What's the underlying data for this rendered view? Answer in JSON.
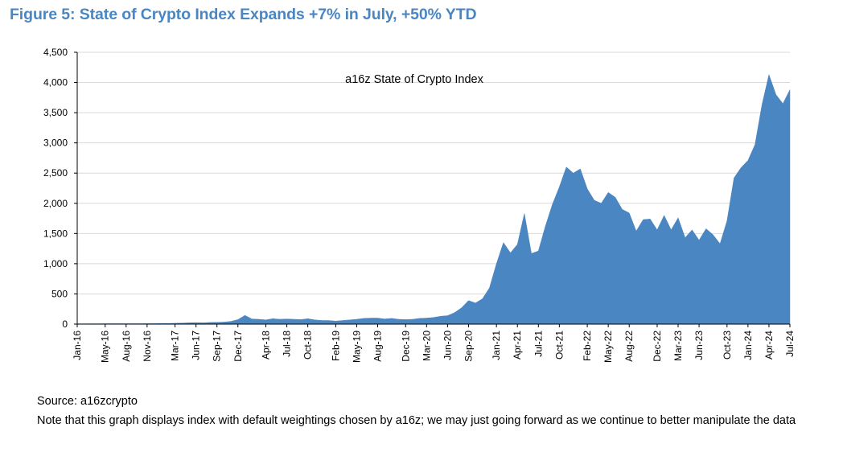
{
  "figure_title": "Figure 5: State of Crypto Index Expands +7% in July, +50% YTD",
  "source_text": "Source: a16zcrypto",
  "note_text": "Note that this graph displays index with default weightings chosen by a16z; we may just going forward as we continue to better manipulate the data",
  "colors": {
    "title": "#4a86c1",
    "area_fill": "#4a86c1",
    "grid": "#d9d9d9",
    "axis": "#000000"
  },
  "chart_data": {
    "type": "area",
    "title": "",
    "legend_label": "a16z State of Crypto Index",
    "legend_placement": "top-center",
    "xlabel": "",
    "ylabel": "",
    "ylim": [
      0,
      4500
    ],
    "yticks": [
      0,
      500,
      1000,
      1500,
      2000,
      2500,
      3000,
      3500,
      4000,
      4500
    ],
    "ytick_labels": [
      "0",
      "500",
      "1,000",
      "1,500",
      "2,000",
      "2,500",
      "3,000",
      "3,500",
      "4,000",
      "4,500"
    ],
    "grid": "horizontal",
    "xtick_labels": [
      "Jan-16",
      "May-16",
      "Aug-16",
      "Nov-16",
      "Mar-17",
      "Jun-17",
      "Sep-17",
      "Dec-17",
      "Apr-18",
      "Jul-18",
      "Oct-18",
      "Feb-19",
      "May-19",
      "Aug-19",
      "Dec-19",
      "Mar-20",
      "Jun-20",
      "Sep-20",
      "Jan-21",
      "Apr-21",
      "Jul-21",
      "Oct-21",
      "Feb-22",
      "May-22",
      "Aug-22",
      "Dec-22",
      "Mar-23",
      "Jun-23",
      "Oct-23",
      "Jan-24",
      "Apr-24",
      "Jul-24"
    ],
    "series": [
      {
        "name": "a16z State of Crypto Index",
        "points": [
          [
            "Jan-16",
            5
          ],
          [
            "Feb-16",
            5
          ],
          [
            "Mar-16",
            6
          ],
          [
            "Apr-16",
            6
          ],
          [
            "May-16",
            7
          ],
          [
            "Jun-16",
            7
          ],
          [
            "Jul-16",
            7
          ],
          [
            "Aug-16",
            7
          ],
          [
            "Sep-16",
            7
          ],
          [
            "Oct-16",
            7
          ],
          [
            "Nov-16",
            8
          ],
          [
            "Dec-16",
            8
          ],
          [
            "Jan-17",
            10
          ],
          [
            "Feb-17",
            11
          ],
          [
            "Mar-17",
            14
          ],
          [
            "Apr-17",
            17
          ],
          [
            "May-17",
            22
          ],
          [
            "Jun-17",
            25
          ],
          [
            "Jul-17",
            22
          ],
          [
            "Aug-17",
            28
          ],
          [
            "Sep-17",
            30
          ],
          [
            "Oct-17",
            34
          ],
          [
            "Nov-17",
            45
          ],
          [
            "Dec-17",
            75
          ],
          [
            "Jan-18",
            145
          ],
          [
            "Feb-18",
            85
          ],
          [
            "Mar-18",
            80
          ],
          [
            "Apr-18",
            70
          ],
          [
            "May-18",
            90
          ],
          [
            "Jun-18",
            80
          ],
          [
            "Jul-18",
            85
          ],
          [
            "Aug-18",
            80
          ],
          [
            "Sep-18",
            75
          ],
          [
            "Oct-18",
            90
          ],
          [
            "Nov-18",
            70
          ],
          [
            "Dec-18",
            60
          ],
          [
            "Jan-19",
            60
          ],
          [
            "Feb-19",
            50
          ],
          [
            "Mar-19",
            60
          ],
          [
            "Apr-19",
            70
          ],
          [
            "May-19",
            80
          ],
          [
            "Jun-19",
            95
          ],
          [
            "Jul-19",
            100
          ],
          [
            "Aug-19",
            100
          ],
          [
            "Sep-19",
            85
          ],
          [
            "Oct-19",
            95
          ],
          [
            "Nov-19",
            80
          ],
          [
            "Dec-19",
            75
          ],
          [
            "Jan-20",
            80
          ],
          [
            "Feb-20",
            95
          ],
          [
            "Mar-20",
            100
          ],
          [
            "Apr-20",
            110
          ],
          [
            "May-20",
            130
          ],
          [
            "Jun-20",
            140
          ],
          [
            "Jul-20",
            190
          ],
          [
            "Aug-20",
            270
          ],
          [
            "Sep-20",
            390
          ],
          [
            "Oct-20",
            350
          ],
          [
            "Nov-20",
            420
          ],
          [
            "Dec-20",
            600
          ],
          [
            "Jan-21",
            1000
          ],
          [
            "Feb-21",
            1350
          ],
          [
            "Mar-21",
            1180
          ],
          [
            "Apr-21",
            1320
          ],
          [
            "May-21",
            1830
          ],
          [
            "Jun-21",
            1170
          ],
          [
            "Jul-21",
            1210
          ],
          [
            "Aug-21",
            1620
          ],
          [
            "Sep-21",
            1980
          ],
          [
            "Oct-21",
            2270
          ],
          [
            "Nov-21",
            2600
          ],
          [
            "Dec-21",
            2500
          ],
          [
            "Jan-22",
            2570
          ],
          [
            "Feb-22",
            2240
          ],
          [
            "Mar-22",
            2050
          ],
          [
            "Apr-22",
            2000
          ],
          [
            "May-22",
            2180
          ],
          [
            "Jun-22",
            2100
          ],
          [
            "Jul-22",
            1900
          ],
          [
            "Aug-22",
            1840
          ],
          [
            "Sep-22",
            1540
          ],
          [
            "Oct-22",
            1730
          ],
          [
            "Nov-22",
            1740
          ],
          [
            "Dec-22",
            1560
          ],
          [
            "Jan-23",
            1800
          ],
          [
            "Feb-23",
            1560
          ],
          [
            "Mar-23",
            1760
          ],
          [
            "Apr-23",
            1430
          ],
          [
            "May-23",
            1560
          ],
          [
            "Jun-23",
            1390
          ],
          [
            "Jul-23",
            1580
          ],
          [
            "Aug-23",
            1480
          ],
          [
            "Sep-23",
            1330
          ],
          [
            "Oct-23",
            1710
          ],
          [
            "Nov-23",
            2420
          ],
          [
            "Dec-23",
            2590
          ],
          [
            "Jan-24",
            2710
          ],
          [
            "Feb-24",
            2970
          ],
          [
            "Mar-24",
            3630
          ],
          [
            "Apr-24",
            4130
          ],
          [
            "May-24",
            3800
          ],
          [
            "Jun-24",
            3650
          ],
          [
            "Jul-24",
            3880
          ]
        ]
      }
    ]
  }
}
